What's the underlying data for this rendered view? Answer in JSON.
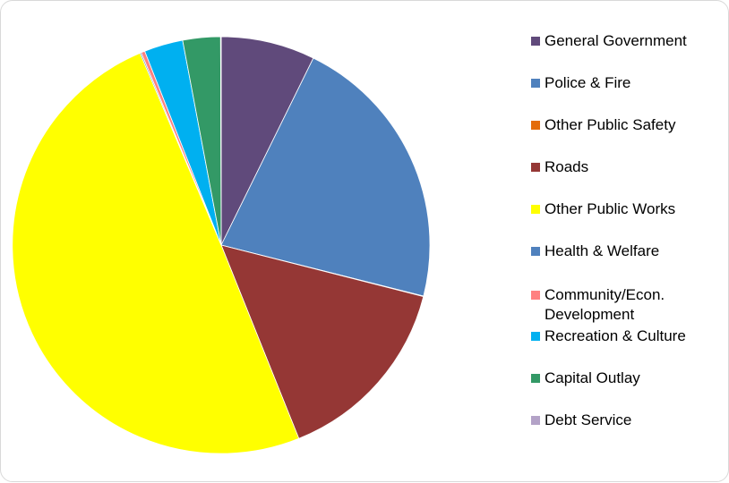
{
  "chart_data": {
    "type": "pie",
    "title": "",
    "start_angle_deg": 0,
    "direction": "clockwise",
    "legend_position": "right",
    "categories": [
      "General Government",
      "Police & Fire",
      "Other Public Safety",
      "Roads",
      "Other Public Works",
      "Health & Welfare",
      "Community/Econ. Development",
      "Recreation & Culture",
      "Capital Outlay",
      "Debt Service"
    ],
    "values": [
      7.5,
      22.3,
      0.05,
      15.4,
      51.2,
      0.1,
      0.3,
      3.1,
      3.0,
      0.05
    ],
    "colors": [
      "#604a7b",
      "#4f81bd",
      "#e46c0a",
      "#953735",
      "#ffff00",
      "#4f81bd",
      "#ff8080",
      "#00b0f0",
      "#339966",
      "#b3a2c7"
    ]
  }
}
